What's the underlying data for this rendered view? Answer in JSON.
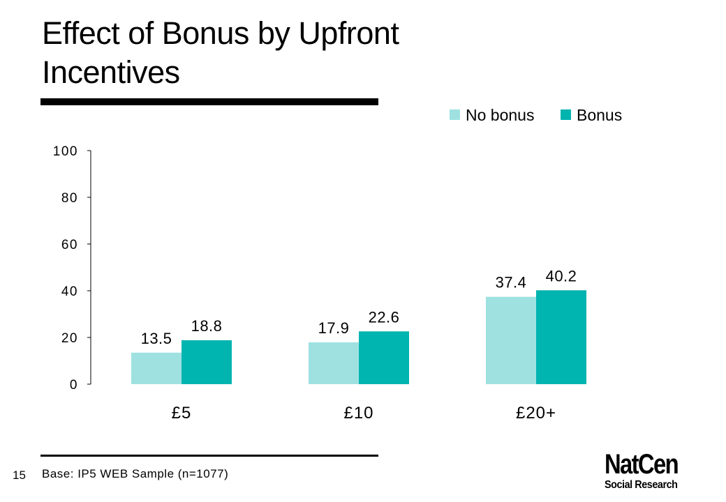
{
  "slide": {
    "title": "Effect of Bonus by Upfront Incentives",
    "base_note": "Base: IP5 WEB Sample (n=1077)",
    "page_number": "15",
    "logo_main": "NatCen",
    "logo_sub": "Social Research",
    "rule_color": "#000000"
  },
  "chart_data": {
    "type": "bar",
    "categories": [
      "£5",
      "£10",
      "£20+"
    ],
    "series": [
      {
        "name": "No bonus",
        "color": "#9fe1e1",
        "values": [
          13.5,
          17.9,
          37.4
        ]
      },
      {
        "name": "Bonus",
        "color": "#00b4b0",
        "values": [
          18.8,
          22.6,
          40.2
        ]
      }
    ],
    "ylim": [
      0,
      100
    ],
    "yticks": [
      0,
      20,
      40,
      60,
      80,
      100
    ],
    "legend": "top-right",
    "grid": false
  }
}
